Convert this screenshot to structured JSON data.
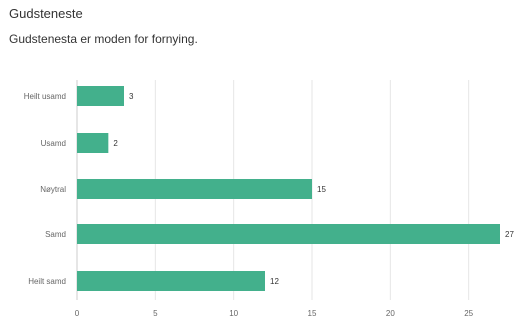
{
  "header": {
    "title": "Gudsteneste",
    "subtitle": "Gudstenesta er moden for fornying."
  },
  "colors": {
    "bar": "#43b08c",
    "grid": "#e6e6e6",
    "text": "#333333",
    "tick": "#666666"
  },
  "chart_data": {
    "type": "bar",
    "orientation": "horizontal",
    "categories": [
      "Heilt usamd",
      "Usamd",
      "Nøytral",
      "Samd",
      "Heilt samd"
    ],
    "values": [
      3,
      2,
      15,
      27,
      12
    ],
    "xlim": [
      0,
      27
    ],
    "xticks": [
      0,
      5,
      10,
      15,
      20,
      25
    ],
    "grid": true,
    "data_labels": true,
    "legend": "none"
  }
}
